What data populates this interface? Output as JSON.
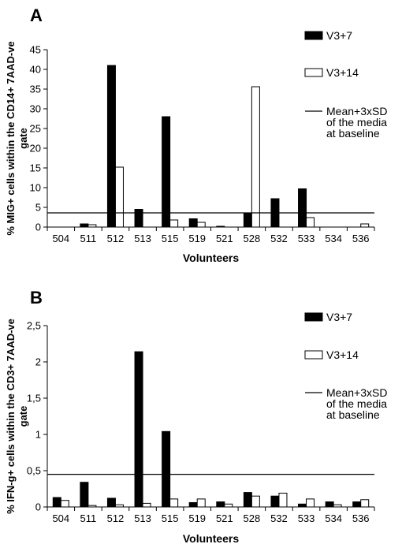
{
  "chart_data": [
    {
      "type": "bar",
      "panel_label": "A",
      "xlabel": "Volunteers",
      "ylabel_line1": "% MIG+ cells within the CD14+ 7AAD-ve",
      "ylabel_line2": "gate",
      "ylim": [
        0,
        45
      ],
      "yticks": [
        "0",
        "5",
        "10",
        "15",
        "20",
        "25",
        "30",
        "35",
        "40",
        "45"
      ],
      "ytick_values": [
        0,
        5,
        10,
        15,
        20,
        25,
        30,
        35,
        40,
        45
      ],
      "categories": [
        "504",
        "511",
        "512",
        "513",
        "515",
        "519",
        "521",
        "528",
        "532",
        "533",
        "534",
        "536"
      ],
      "series": [
        {
          "name": "V3+7",
          "color": "#000000",
          "values": [
            0,
            0.8,
            41,
            4.5,
            28,
            2.1,
            0.2,
            3.4,
            7.2,
            9.7,
            0,
            0
          ]
        },
        {
          "name": "V3+14",
          "color": "#ffffff",
          "values": [
            0,
            0.6,
            15.2,
            0,
            1.8,
            1.2,
            0,
            35.6,
            0,
            2.4,
            0,
            0.8
          ]
        }
      ],
      "reference_line": {
        "label_lines": [
          "Mean+3xSD",
          "of the media",
          "at baseline"
        ],
        "value": 3.6
      },
      "grid": false,
      "legend_position": "right"
    },
    {
      "type": "bar",
      "panel_label": "B",
      "xlabel": "Volunteers",
      "ylabel_line1": "% IFN-g+ cells within the CD3+ 7AAD-ve",
      "ylabel_line2": "gate",
      "ylim": [
        0,
        2.5
      ],
      "yticks": [
        "0",
        "0,5",
        "1",
        "1,5",
        "2",
        "2,5"
      ],
      "ytick_values": [
        0,
        0.5,
        1,
        1.5,
        2,
        2.5
      ],
      "categories": [
        "504",
        "511",
        "512",
        "513",
        "515",
        "519",
        "521",
        "528",
        "532",
        "533",
        "534",
        "536"
      ],
      "series": [
        {
          "name": "V3+7",
          "color": "#000000",
          "values": [
            0.13,
            0.34,
            0.12,
            2.14,
            1.04,
            0.06,
            0.07,
            0.2,
            0.15,
            0.04,
            0.07,
            0.07
          ]
        },
        {
          "name": "V3+14",
          "color": "#ffffff",
          "values": [
            0.09,
            0.02,
            0.03,
            0.05,
            0.11,
            0.11,
            0.04,
            0.15,
            0.19,
            0.11,
            0.03,
            0.1
          ]
        }
      ],
      "reference_line": {
        "label_lines": [
          "Mean+3xSD",
          "of the media",
          "at baseline"
        ],
        "value": 0.45
      },
      "grid": false,
      "legend_position": "right"
    }
  ]
}
